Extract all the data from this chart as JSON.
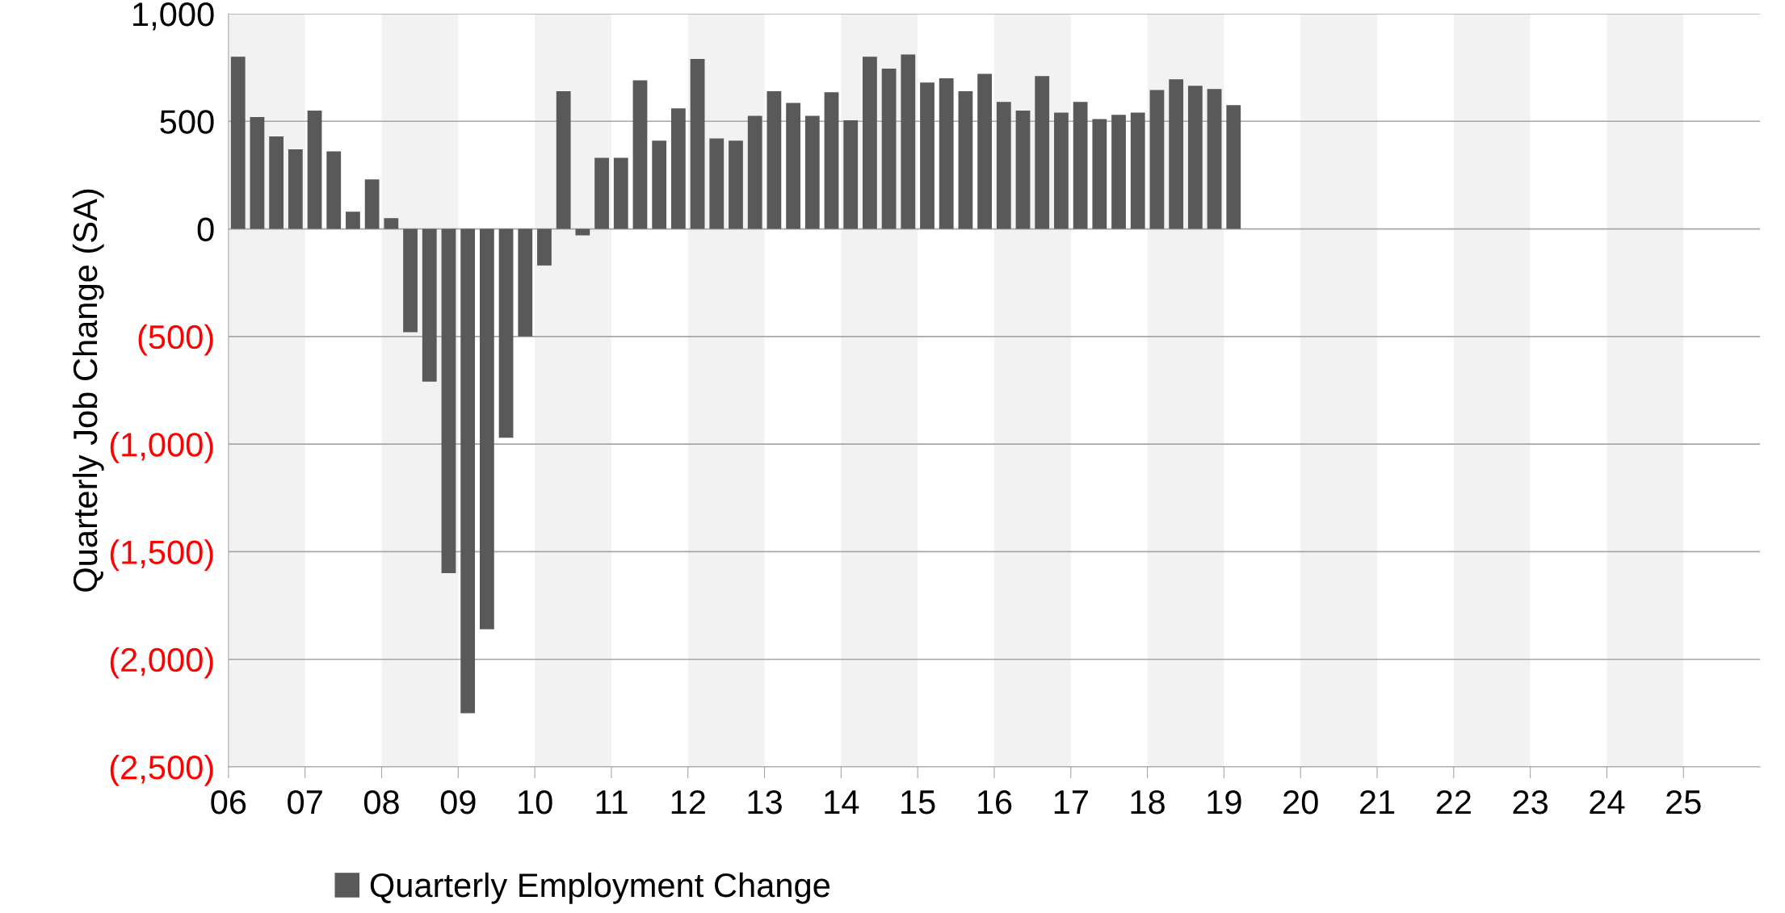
{
  "chart_data": {
    "type": "bar",
    "ylabel": "Quarterly Job Change (SA)",
    "x": [
      2006.125,
      2006.375,
      2006.625,
      2006.875,
      2007.125,
      2007.375,
      2007.625,
      2007.875,
      2008.125,
      2008.375,
      2008.625,
      2008.875,
      2009.125,
      2009.375,
      2009.625,
      2009.875,
      2010.125,
      2010.375,
      2010.625,
      2010.875,
      2011.125,
      2011.375,
      2011.625,
      2011.875,
      2012.125,
      2012.375,
      2012.625,
      2012.875,
      2013.125,
      2013.375,
      2013.625,
      2013.875,
      2014.125,
      2014.375,
      2014.625,
      2014.875,
      2015.125,
      2015.375,
      2015.625,
      2015.875,
      2016.125,
      2016.375,
      2016.625,
      2016.875,
      2017.125,
      2017.375,
      2017.625,
      2017.875,
      2018.125,
      2018.375,
      2018.625,
      2018.875,
      2019.125
    ],
    "series": [
      {
        "name": "Quarterly Employment Change",
        "color": "#595959",
        "values": [
          800,
          520,
          430,
          370,
          550,
          360,
          80,
          230,
          50,
          -480,
          -710,
          -1600,
          -2250,
          -1860,
          -970,
          -500,
          -170,
          640,
          -30,
          330,
          330,
          690,
          410,
          560,
          790,
          420,
          410,
          525,
          640,
          585,
          525,
          635,
          505,
          800,
          745,
          810,
          680,
          700,
          640,
          720,
          590,
          550,
          710,
          540,
          590,
          510,
          530,
          540,
          645,
          695,
          665,
          650,
          575
        ]
      }
    ],
    "xlim": [
      2006,
      2026
    ],
    "xticks": [
      {
        "value": 2006,
        "label": "06"
      },
      {
        "value": 2007,
        "label": "07"
      },
      {
        "value": 2008,
        "label": "08"
      },
      {
        "value": 2009,
        "label": "09"
      },
      {
        "value": 2010,
        "label": "10"
      },
      {
        "value": 2011,
        "label": "11"
      },
      {
        "value": 2012,
        "label": "12"
      },
      {
        "value": 2013,
        "label": "13"
      },
      {
        "value": 2014,
        "label": "14"
      },
      {
        "value": 2015,
        "label": "15"
      },
      {
        "value": 2016,
        "label": "16"
      },
      {
        "value": 2017,
        "label": "17"
      },
      {
        "value": 2018,
        "label": "18"
      },
      {
        "value": 2019,
        "label": "19"
      },
      {
        "value": 2020,
        "label": "20"
      },
      {
        "value": 2021,
        "label": "21"
      },
      {
        "value": 2022,
        "label": "22"
      },
      {
        "value": 2023,
        "label": "23"
      },
      {
        "value": 2024,
        "label": "24"
      },
      {
        "value": 2025,
        "label": "25"
      }
    ],
    "ylim": [
      -2500,
      1000
    ],
    "yticks": [
      {
        "value": 1000,
        "label": "1,000"
      },
      500,
      0,
      {
        "value": -500,
        "label": "(500)"
      },
      {
        "value": -1000,
        "label": "(1,000)"
      },
      {
        "value": -1500,
        "label": "(1,500)"
      },
      {
        "value": -2000,
        "label": "(2,000)"
      },
      {
        "value": -2500,
        "label": "(2,500)"
      }
    ],
    "bands": [
      {
        "axis": "x",
        "from": 2006,
        "to": 2007,
        "color": "#f2f2f2"
      },
      {
        "axis": "x",
        "from": 2008,
        "to": 2009,
        "color": "#f2f2f2"
      },
      {
        "axis": "x",
        "from": 2010,
        "to": 2011,
        "color": "#f2f2f2"
      },
      {
        "axis": "x",
        "from": 2012,
        "to": 2013,
        "color": "#f2f2f2"
      },
      {
        "axis": "x",
        "from": 2014,
        "to": 2015,
        "color": "#f2f2f2"
      },
      {
        "axis": "x",
        "from": 2016,
        "to": 2017,
        "color": "#f2f2f2"
      },
      {
        "axis": "x",
        "from": 2018,
        "to": 2019,
        "color": "#f2f2f2"
      },
      {
        "axis": "x",
        "from": 2020,
        "to": 2021,
        "color": "#f2f2f2"
      },
      {
        "axis": "x",
        "from": 2022,
        "to": 2023,
        "color": "#f2f2f2"
      },
      {
        "axis": "x",
        "from": 2024,
        "to": 2025,
        "color": "#f2f2f2"
      }
    ],
    "grid": "y",
    "legend": "bottom left"
  }
}
